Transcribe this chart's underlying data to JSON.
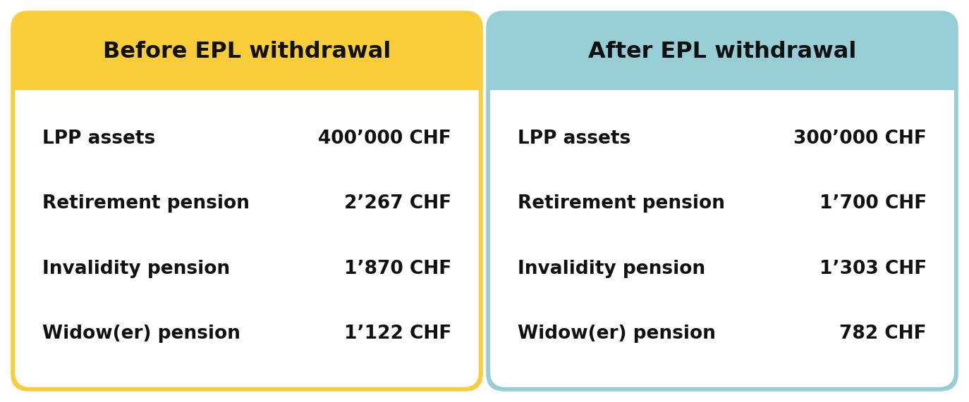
{
  "left_title": "Before EPL withdrawal",
  "right_title": "After EPL withdrawal",
  "left_header_color": "#F9CC3A",
  "right_header_color": "#97CDD5",
  "left_border_color": "#F9CC3A",
  "right_border_color": "#97CDD5",
  "text_color": "#111111",
  "outer_background": "#ffffff",
  "left_rows": [
    [
      "LPP assets",
      "400’000 CHF"
    ],
    [
      "Retirement pension",
      "2’267 CHF"
    ],
    [
      "Invalidity pension",
      "1’870 CHF"
    ],
    [
      "Widow(er) pension",
      "1’122 CHF"
    ]
  ],
  "right_rows": [
    [
      "LPP assets",
      "300’000 CHF"
    ],
    [
      "Retirement pension",
      "1’700 CHF"
    ],
    [
      "Invalidity pension",
      "1’303 CHF"
    ],
    [
      "Widow(er) pension",
      "782 CHF"
    ]
  ],
  "title_fontsize": 23,
  "row_fontsize": 19,
  "fig_width": 13.74,
  "fig_height": 5.71
}
